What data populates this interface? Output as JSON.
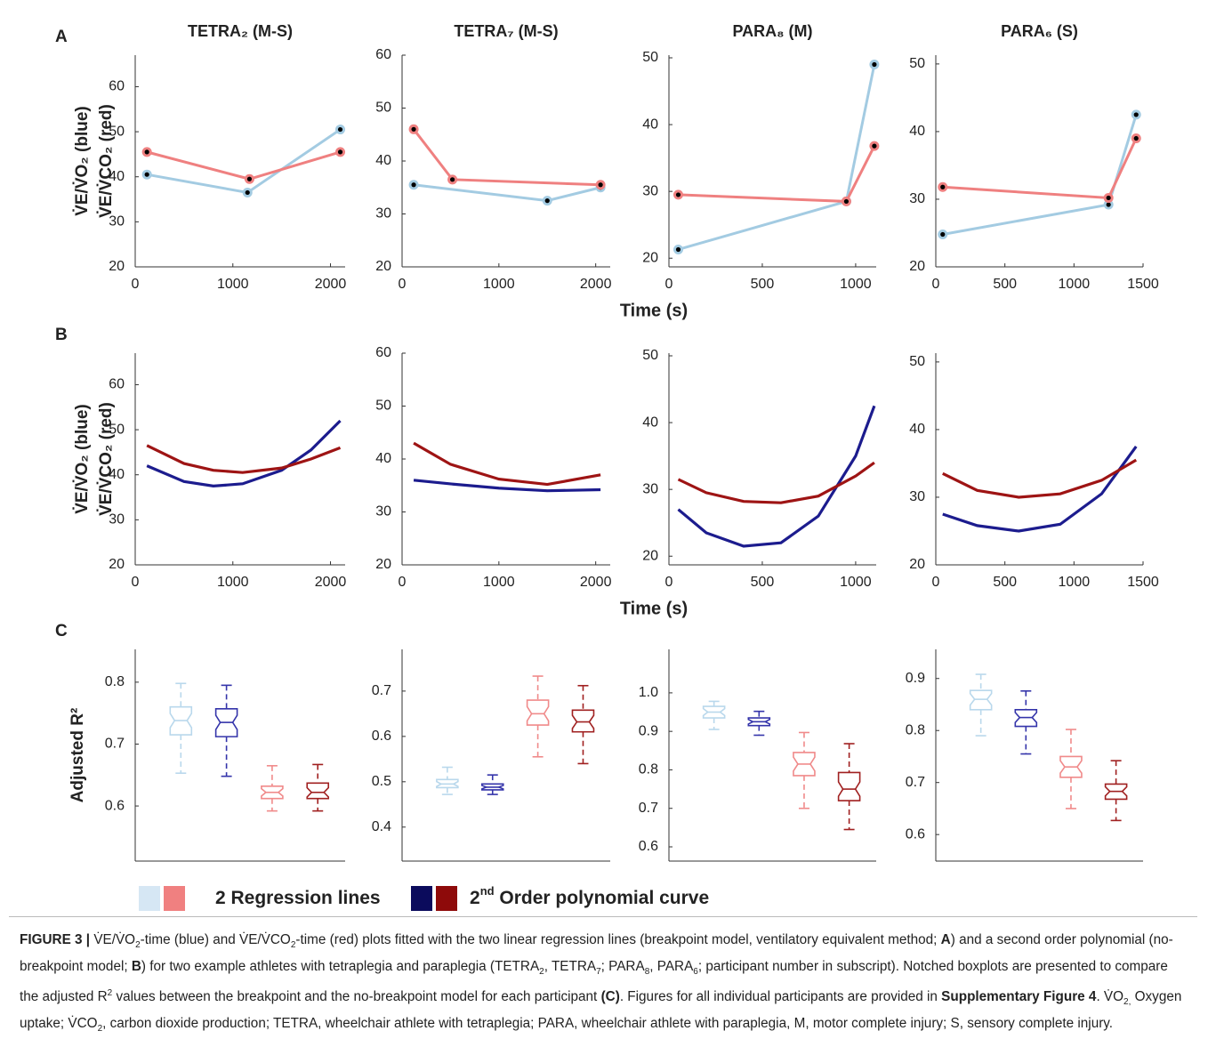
{
  "panels": [
    {
      "label": "A",
      "xlabel": "Time (s)"
    },
    {
      "label": "B",
      "xlabel": "Time (s)"
    },
    {
      "label": "C"
    }
  ],
  "chart_data": [
    {
      "type": "line",
      "title": "TETRA₂ (M-S)",
      "ylabel": [
        "V̇E/V̇O₂ (blue)",
        "V̇E/V̇CO₂ (red)"
      ],
      "markers": true,
      "xlim": [
        0,
        2150
      ],
      "xticks": [
        0,
        1000,
        2000
      ],
      "ylim": [
        20,
        67
      ],
      "yticks": [
        20,
        30,
        40,
        50,
        60
      ],
      "series": [
        {
          "color": "#a3cbe2",
          "x": [
            120,
            1150,
            2100
          ],
          "values": [
            40.5,
            36.5,
            50.5
          ]
        },
        {
          "color": "#ef8080",
          "x": [
            120,
            1170,
            2100
          ],
          "values": [
            45.5,
            39.5,
            45.5
          ]
        }
      ]
    },
    {
      "type": "line",
      "title": "TETRA₇ (M-S)",
      "markers": true,
      "xlim": [
        0,
        2150
      ],
      "xticks": [
        0,
        1000,
        2000
      ],
      "ylim": [
        20,
        60
      ],
      "yticks": [
        20,
        30,
        40,
        50,
        60
      ],
      "series": [
        {
          "color": "#a3cbe2",
          "x": [
            120,
            1500,
            2050
          ],
          "values": [
            35.5,
            32.5,
            35
          ]
        },
        {
          "color": "#ef8080",
          "x": [
            120,
            520,
            2050
          ],
          "values": [
            46,
            36.5,
            35.5
          ]
        }
      ]
    },
    {
      "type": "line",
      "title": "PARA₈ (M)",
      "markers": true,
      "xlim": [
        0,
        1110
      ],
      "xticks": [
        0,
        500,
        1000
      ],
      "ylim": [
        18.7,
        50.4
      ],
      "yticks": [
        20,
        30,
        40,
        50
      ],
      "series": [
        {
          "color": "#a3cbe2",
          "x": [
            50,
            950,
            1100
          ],
          "values": [
            21.3,
            28.5,
            49
          ]
        },
        {
          "color": "#ef8080",
          "x": [
            50,
            950,
            1100
          ],
          "values": [
            29.5,
            28.5,
            36.8
          ]
        }
      ]
    },
    {
      "type": "line",
      "title": "PARA₆ (S)",
      "markers": true,
      "xlim": [
        0,
        1500
      ],
      "xticks": [
        0,
        500,
        1000,
        1500
      ],
      "ylim": [
        20,
        51.3
      ],
      "yticks": [
        20,
        30,
        40,
        50
      ],
      "series": [
        {
          "color": "#a3cbe2",
          "x": [
            50,
            1250,
            1450
          ],
          "values": [
            24.8,
            29.2,
            42.5
          ]
        },
        {
          "color": "#ef8080",
          "x": [
            50,
            1250,
            1450
          ],
          "values": [
            31.8,
            30.2,
            39
          ]
        }
      ]
    },
    {
      "type": "line",
      "ylabel": [
        "V̇E/V̇O₂ (blue)",
        "V̇E/V̇CO₂ (red)"
      ],
      "xlim": [
        0,
        2150
      ],
      "xticks": [
        0,
        1000,
        2000
      ],
      "ylim": [
        20,
        67
      ],
      "yticks": [
        20,
        30,
        40,
        50,
        60
      ],
      "series": [
        {
          "color": "#1c1c8e",
          "x": [
            120,
            500,
            800,
            1100,
            1500,
            1800,
            2100
          ],
          "values": [
            42,
            38.5,
            37.5,
            38,
            41,
            45.5,
            52
          ]
        },
        {
          "color": "#9e1414",
          "x": [
            120,
            500,
            800,
            1100,
            1500,
            1800,
            2100
          ],
          "values": [
            46.5,
            42.5,
            41,
            40.5,
            41.5,
            43.5,
            46
          ]
        }
      ]
    },
    {
      "type": "line",
      "xlim": [
        0,
        2150
      ],
      "xticks": [
        0,
        1000,
        2000
      ],
      "ylim": [
        20,
        60
      ],
      "yticks": [
        20,
        30,
        40,
        50,
        60
      ],
      "series": [
        {
          "color": "#1c1c8e",
          "x": [
            120,
            500,
            1000,
            1500,
            2050
          ],
          "values": [
            36,
            35.3,
            34.5,
            34,
            34.2
          ]
        },
        {
          "color": "#9e1414",
          "x": [
            120,
            500,
            1000,
            1500,
            2050
          ],
          "values": [
            43,
            39,
            36.2,
            35.2,
            37
          ]
        }
      ]
    },
    {
      "type": "line",
      "xlim": [
        0,
        1110
      ],
      "xticks": [
        0,
        500,
        1000
      ],
      "ylim": [
        18.7,
        50.4
      ],
      "yticks": [
        20,
        30,
        40,
        50
      ],
      "series": [
        {
          "color": "#1c1c8e",
          "x": [
            50,
            200,
            400,
            600,
            800,
            1000,
            1100
          ],
          "values": [
            27,
            23.5,
            21.5,
            22,
            26,
            35,
            42.5
          ]
        },
        {
          "color": "#9e1414",
          "x": [
            50,
            200,
            400,
            600,
            800,
            1000,
            1100
          ],
          "values": [
            31.5,
            29.5,
            28.2,
            28,
            29,
            32,
            34
          ]
        }
      ]
    },
    {
      "type": "line",
      "xlim": [
        0,
        1500
      ],
      "xticks": [
        0,
        500,
        1000,
        1500
      ],
      "ylim": [
        20,
        51.3
      ],
      "yticks": [
        20,
        30,
        40,
        50
      ],
      "series": [
        {
          "color": "#1c1c8e",
          "x": [
            50,
            300,
            600,
            900,
            1200,
            1450
          ],
          "values": [
            27.5,
            25.8,
            25,
            26,
            30.5,
            37.5
          ]
        },
        {
          "color": "#9e1414",
          "x": [
            50,
            300,
            600,
            900,
            1200,
            1450
          ],
          "values": [
            33.5,
            31,
            30,
            30.5,
            32.5,
            35.5
          ]
        }
      ]
    },
    {
      "type": "box",
      "ylabel": [
        "Adjusted R²"
      ],
      "categories": [
        null,
        null,
        null,
        null
      ],
      "ylim": [
        0.511,
        0.853
      ],
      "yticks": [
        0.6,
        0.7,
        0.8
      ],
      "boxes": [
        {
          "color": "#b9d8ec",
          "min": 0.653,
          "q1": 0.715,
          "median": 0.738,
          "q3": 0.76,
          "max": 0.798
        },
        {
          "color": "#3434aa",
          "min": 0.648,
          "q1": 0.712,
          "median": 0.735,
          "q3": 0.757,
          "max": 0.795
        },
        {
          "color": "#f08a8a",
          "min": 0.592,
          "q1": 0.612,
          "median": 0.622,
          "q3": 0.632,
          "max": 0.665
        },
        {
          "color": "#a02020",
          "min": 0.592,
          "q1": 0.612,
          "median": 0.622,
          "q3": 0.637,
          "max": 0.667
        }
      ]
    },
    {
      "type": "box",
      "categories": [
        null,
        null,
        null,
        null
      ],
      "ylim": [
        0.325,
        0.792
      ],
      "yticks": [
        0.4,
        0.5,
        0.6,
        0.7
      ],
      "boxes": [
        {
          "color": "#b9d8ec",
          "min": 0.472,
          "q1": 0.487,
          "median": 0.495,
          "q3": 0.505,
          "max": 0.532
        },
        {
          "color": "#3434aa",
          "min": 0.472,
          "q1": 0.482,
          "median": 0.488,
          "q3": 0.495,
          "max": 0.515
        },
        {
          "color": "#f08a8a",
          "min": 0.555,
          "q1": 0.625,
          "median": 0.65,
          "q3": 0.68,
          "max": 0.733
        },
        {
          "color": "#a02020",
          "min": 0.54,
          "q1": 0.61,
          "median": 0.632,
          "q3": 0.658,
          "max": 0.712
        }
      ]
    },
    {
      "type": "box",
      "categories": [
        null,
        null,
        null,
        null
      ],
      "ylim": [
        0.563,
        1.113
      ],
      "yticks": [
        0.6,
        0.7,
        0.8,
        0.9,
        {
          "value": 1,
          "label": "1.0"
        }
      ],
      "boxes": [
        {
          "color": "#b9d8ec",
          "min": 0.905,
          "q1": 0.935,
          "median": 0.95,
          "q3": 0.965,
          "max": 0.978
        },
        {
          "color": "#3434aa",
          "min": 0.89,
          "q1": 0.915,
          "median": 0.925,
          "q3": 0.935,
          "max": 0.952
        },
        {
          "color": "#f08a8a",
          "min": 0.7,
          "q1": 0.785,
          "median": 0.815,
          "q3": 0.845,
          "max": 0.897
        },
        {
          "color": "#a02020",
          "min": 0.645,
          "q1": 0.72,
          "median": 0.75,
          "q3": 0.793,
          "max": 0.868
        }
      ]
    },
    {
      "type": "box",
      "categories": [
        null,
        null,
        null,
        null
      ],
      "ylim": [
        0.549,
        0.956
      ],
      "yticks": [
        0.6,
        0.7,
        0.8,
        0.9
      ],
      "boxes": [
        {
          "color": "#b9d8ec",
          "min": 0.79,
          "q1": 0.84,
          "median": 0.86,
          "q3": 0.877,
          "max": 0.908
        },
        {
          "color": "#3434aa",
          "min": 0.755,
          "q1": 0.808,
          "median": 0.825,
          "q3": 0.84,
          "max": 0.876
        },
        {
          "color": "#f08a8a",
          "min": 0.65,
          "q1": 0.71,
          "median": 0.73,
          "q3": 0.75,
          "max": 0.802
        },
        {
          "color": "#a02020",
          "min": 0.627,
          "q1": 0.668,
          "median": 0.683,
          "q3": 0.697,
          "max": 0.742
        }
      ]
    }
  ],
  "legend": {
    "items": [
      {
        "colors": [
          "#d6e7f4",
          "#f08080"
        ],
        "parts": [
          "2 Regression lines"
        ]
      },
      {
        "colors": [
          "#0b0b5c",
          "#8e0a0a"
        ],
        "parts": [
          "2",
          "nd",
          " Order polynomial curve"
        ]
      }
    ]
  },
  "caption": [
    {
      "text": "FIGURE 3 |",
      "style": "b"
    },
    {
      "text": " V̇E/V̇O"
    },
    {
      "text": "2",
      "style": "sub"
    },
    {
      "text": "-time (blue) and V̇E/V̇CO"
    },
    {
      "text": "2",
      "style": "sub"
    },
    {
      "text": "-time (red) plots fitted with the two linear regression lines (breakpoint model, ventilatory equivalent method; "
    },
    {
      "text": "A",
      "style": "b"
    },
    {
      "text": ") and a second order polynomial (no-breakpoint model; "
    },
    {
      "text": "B",
      "style": "b"
    },
    {
      "text": ") for two example athletes with tetraplegia and paraplegia (TETRA"
    },
    {
      "text": "2",
      "style": "sub"
    },
    {
      "text": ", TETRA"
    },
    {
      "text": "7",
      "style": "sub"
    },
    {
      "text": "; PARA"
    },
    {
      "text": "8",
      "style": "sub"
    },
    {
      "text": ", PARA"
    },
    {
      "text": "6",
      "style": "sub"
    },
    {
      "text": "; participant number in subscript). Notched boxplots are presented to compare the adjusted R"
    },
    {
      "text": "2",
      "style": "sup"
    },
    {
      "text": " values between the breakpoint and the no-breakpoint model for each participant "
    },
    {
      "text": "(C)",
      "style": "b"
    },
    {
      "text": ". Figures for all individual participants are provided in "
    },
    {
      "text": "Supplementary Figure 4",
      "style": "b"
    },
    {
      "text": ". V̇O"
    },
    {
      "text": "2,",
      "style": "sub"
    },
    {
      "text": " Oxygen uptake; V̇CO"
    },
    {
      "text": "2",
      "style": "sub"
    },
    {
      "text": ", carbon dioxide production; TETRA, wheelchair athlete with tetraplegia; PARA, wheelchair athlete with paraplegia, M, motor complete injury; S, sensory complete injury."
    }
  ]
}
